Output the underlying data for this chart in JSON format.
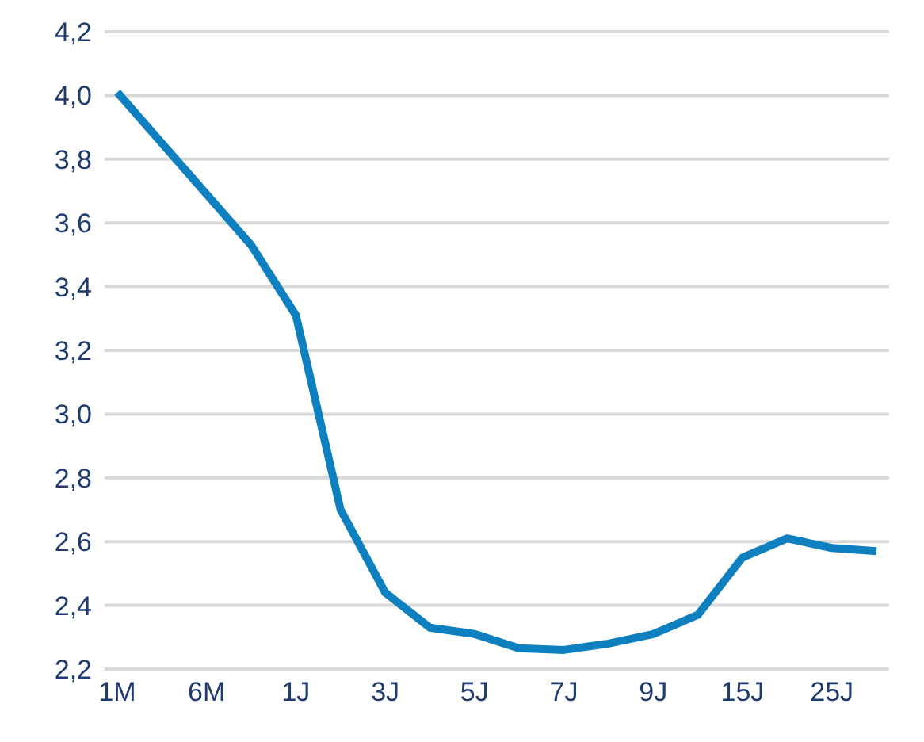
{
  "chart_data": {
    "type": "line",
    "categories": [
      "1M",
      null,
      "6M",
      null,
      "1J",
      null,
      "3J",
      null,
      "5J",
      null,
      "7J",
      null,
      "9J",
      null,
      "15J",
      null,
      "25J",
      null
    ],
    "series": [
      {
        "color": "#0f80bf",
        "values": [
          4.01,
          3.85,
          3.69,
          3.53,
          3.31,
          2.7,
          2.44,
          2.33,
          2.31,
          2.265,
          2.26,
          2.28,
          2.31,
          2.37,
          2.55,
          2.61,
          2.58,
          2.57
        ]
      }
    ],
    "ylim": [
      2.2,
      4.2
    ],
    "yticks": [
      {
        "value": 2.2,
        "label": "2,2"
      },
      {
        "value": 2.4,
        "label": "2,4"
      },
      {
        "value": 2.6,
        "label": "2,6"
      },
      {
        "value": 2.8,
        "label": "2,8"
      },
      {
        "value": 3.0,
        "label": "3,0"
      },
      {
        "value": 3.2,
        "label": "3,2"
      },
      {
        "value": 3.4,
        "label": "3,4"
      },
      {
        "value": 3.6,
        "label": "3,6"
      },
      {
        "value": 3.8,
        "label": "3,8"
      },
      {
        "value": 4.0,
        "label": "4,0"
      },
      {
        "value": 4.2,
        "label": "4,2"
      }
    ],
    "grid": "y",
    "legend": false,
    "marker": "none",
    "line_style": "solid"
  }
}
